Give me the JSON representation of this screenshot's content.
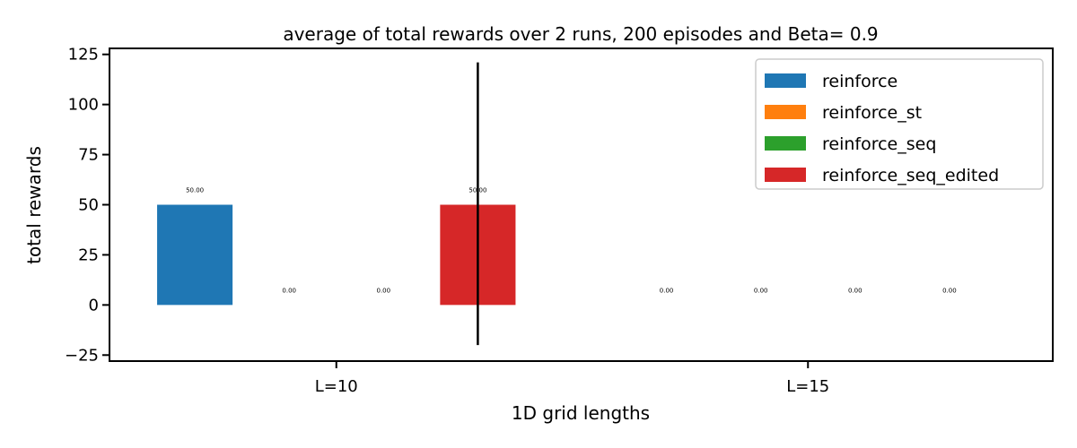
{
  "chart_data": {
    "type": "bar",
    "title": "average of total rewards over 2 runs, 200 episodes and Beta= 0.9",
    "xlabel": "1D grid lengths",
    "ylabel": "total rewards",
    "categories": [
      "L=10",
      "L=15"
    ],
    "ylim": [
      -28,
      128
    ],
    "yticks": [
      -25,
      0,
      25,
      50,
      75,
      100,
      125
    ],
    "legend_position": "top-right",
    "grid": false,
    "series": [
      {
        "name": "reinforce",
        "color": "#1f77b4",
        "values": [
          50,
          0
        ],
        "labels": [
          "50.00",
          "0.00"
        ]
      },
      {
        "name": "reinforce_st",
        "color": "#ff7f0e",
        "values": [
          0,
          0
        ],
        "labels": [
          "0.00",
          "0.00"
        ]
      },
      {
        "name": "reinforce_seq",
        "color": "#2ca02c",
        "values": [
          0,
          0
        ],
        "labels": [
          "0.00",
          "0.00"
        ]
      },
      {
        "name": "reinforce_seq_edited",
        "color": "#d62728",
        "values": [
          50,
          0
        ],
        "labels": [
          "50.00",
          "0.00"
        ]
      }
    ],
    "error_bars": [
      {
        "series": "reinforce_seq_edited",
        "category": "L=10",
        "low": -20,
        "high": 121
      }
    ]
  }
}
